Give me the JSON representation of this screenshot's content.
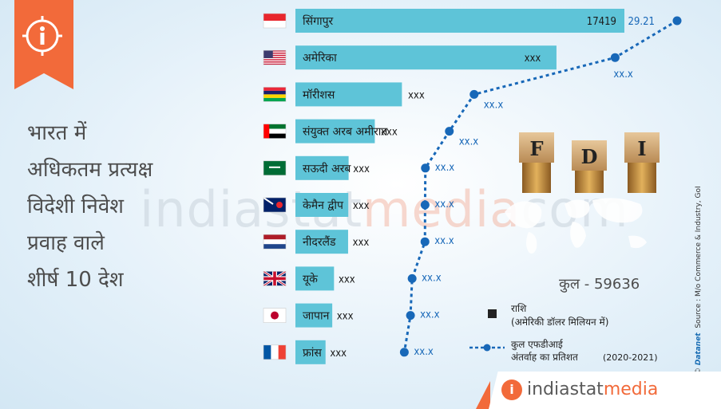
{
  "header": {
    "title_lines": [
      "भारत में",
      "अधिकतम प्रत्यक्ष",
      "विदेशी निवेश",
      "प्रवाह वाले",
      "शीर्ष 10 देश"
    ],
    "info_icon": "info-icon"
  },
  "watermark": {
    "part1": "indiastat",
    "part2": "media",
    "part3": "com"
  },
  "fdi_blocks": [
    "F",
    "D",
    "I"
  ],
  "total": "कुल - 59636",
  "legend": {
    "amount_label": "राशि",
    "amount_unit": "(अमेरिकी डॉलर मिलियन में)",
    "line_label_1": "कुल एफडीआई",
    "line_label_2": "अंतर्वाह का प्रतिशत",
    "period": "(2020-2021)"
  },
  "source": {
    "brand": "Datanet",
    "text": "Source : M/o Commerce & Industry, GoI",
    "copyright": "©"
  },
  "footer": {
    "logo_part1": "indiastat",
    "logo_part2": "media",
    "logo_icon": "i"
  },
  "colors": {
    "bar": "#5ec4d8",
    "line": "#1868b8",
    "accent": "#f26a3a"
  },
  "chart_data": {
    "type": "bar",
    "orientation": "horizontal",
    "categories": [
      "सिंगापुर",
      "अमेरिका",
      "मॉरीशस",
      "संयुक्त अरब अमीरात",
      "सऊदी अरब",
      "केमैन द्वीप",
      "नीदरलैंड",
      "यूके",
      "जापान",
      "फ्रांस"
    ],
    "flags": [
      "singapore",
      "usa",
      "mauritius",
      "uae",
      "saudi-arabia",
      "cayman-islands",
      "netherlands",
      "uk",
      "japan",
      "france"
    ],
    "series": [
      {
        "name": "राशि",
        "values": [
          17419,
          13823,
          5639,
          4203,
          2816,
          2799,
          2789,
          2043,
          1950,
          1595
        ],
        "labels": [
          "17419",
          "xxx",
          "xxx",
          "xxx",
          "xxx",
          "xxx",
          "xxx",
          "xxx",
          "xxx",
          "xxx"
        ]
      },
      {
        "name": "कुल एफडीआई अंतर्वाह का प्रतिशत",
        "values": [
          29.21,
          23.18,
          9.46,
          7.05,
          4.72,
          4.69,
          4.68,
          3.43,
          3.27,
          2.67
        ],
        "labels": [
          "29.21",
          "xx.x",
          "xx.x",
          "xx.x",
          "xx.x",
          "xx.x",
          "xx.x",
          "xx.x",
          "xx.x",
          "xx.x"
        ]
      }
    ],
    "grid": false
  }
}
